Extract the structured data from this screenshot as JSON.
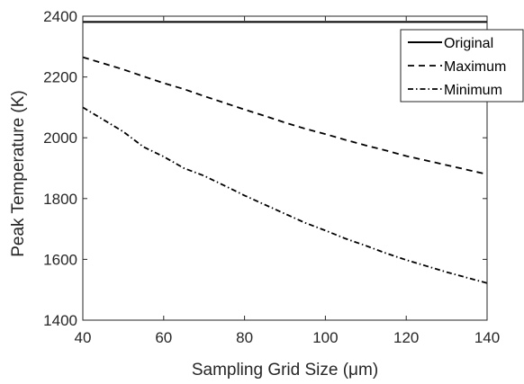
{
  "chart_data": {
    "type": "line",
    "title": "",
    "xlabel": "Sampling Grid Size (μm)",
    "ylabel": "Peak Temperature (K)",
    "xlim": [
      40,
      140
    ],
    "ylim": [
      1400,
      2400
    ],
    "xticks": [
      40,
      60,
      80,
      100,
      120,
      140
    ],
    "yticks": [
      1400,
      1600,
      1800,
      2000,
      2200,
      2400
    ],
    "grid": false,
    "legend_position": "top-right",
    "series": [
      {
        "name": "Original",
        "style": "solid",
        "color": "#000000",
        "x": [
          40,
          140
        ],
        "y": [
          2381,
          2381
        ]
      },
      {
        "name": "Maximum",
        "style": "dashed",
        "color": "#000000",
        "x": [
          40,
          45,
          50,
          55,
          60,
          65,
          70,
          75,
          80,
          85,
          90,
          95,
          100,
          105,
          110,
          115,
          120,
          125,
          130,
          135,
          140
        ],
        "y": [
          2265,
          2245,
          2225,
          2202,
          2180,
          2160,
          2137,
          2115,
          2093,
          2072,
          2050,
          2030,
          2012,
          1993,
          1975,
          1958,
          1940,
          1925,
          1910,
          1895,
          1880
        ]
      },
      {
        "name": "Minimum",
        "style": "dashdot",
        "color": "#000000",
        "x": [
          40,
          45,
          50,
          55,
          60,
          65,
          70,
          75,
          80,
          85,
          90,
          95,
          100,
          105,
          110,
          115,
          120,
          125,
          130,
          135,
          140
        ],
        "y": [
          2100,
          2060,
          2020,
          1970,
          1938,
          1900,
          1875,
          1843,
          1810,
          1780,
          1750,
          1720,
          1695,
          1668,
          1645,
          1620,
          1598,
          1578,
          1558,
          1540,
          1522
        ]
      }
    ]
  }
}
